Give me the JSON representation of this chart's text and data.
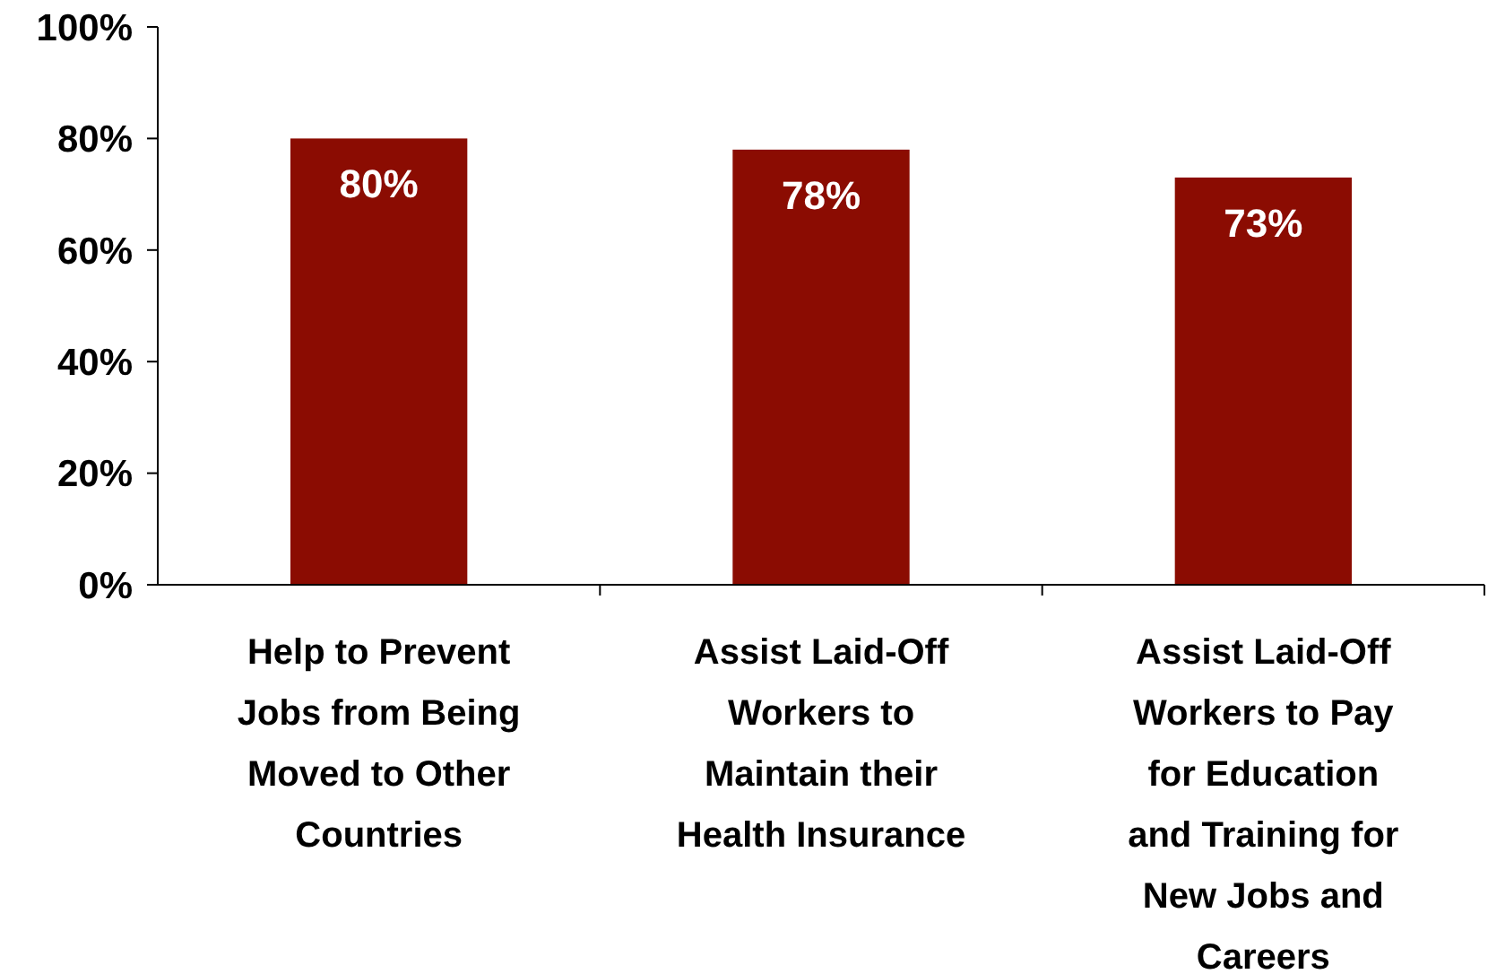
{
  "chart_data": {
    "type": "bar",
    "categories": [
      "Help to Prevent Jobs from Being Moved to Other Countries",
      "Assist Laid-Off Workers to Maintain their Health Insurance",
      "Assist Laid-Off Workers to Pay for Education and Training for New Jobs and Careers"
    ],
    "values": [
      80,
      78,
      73
    ],
    "color": "#8b0c02",
    "value_labels": [
      "80%",
      "78%",
      "73%"
    ],
    "ylim": [
      0,
      100
    ],
    "yticks": [
      {
        "value": 0,
        "label": "0%"
      },
      {
        "value": 20,
        "label": "20%"
      },
      {
        "value": 40,
        "label": "40%"
      },
      {
        "value": 60,
        "label": "60%"
      },
      {
        "value": 80,
        "label": "80%"
      },
      {
        "value": 100,
        "label": "100%"
      }
    ],
    "grid": false
  }
}
